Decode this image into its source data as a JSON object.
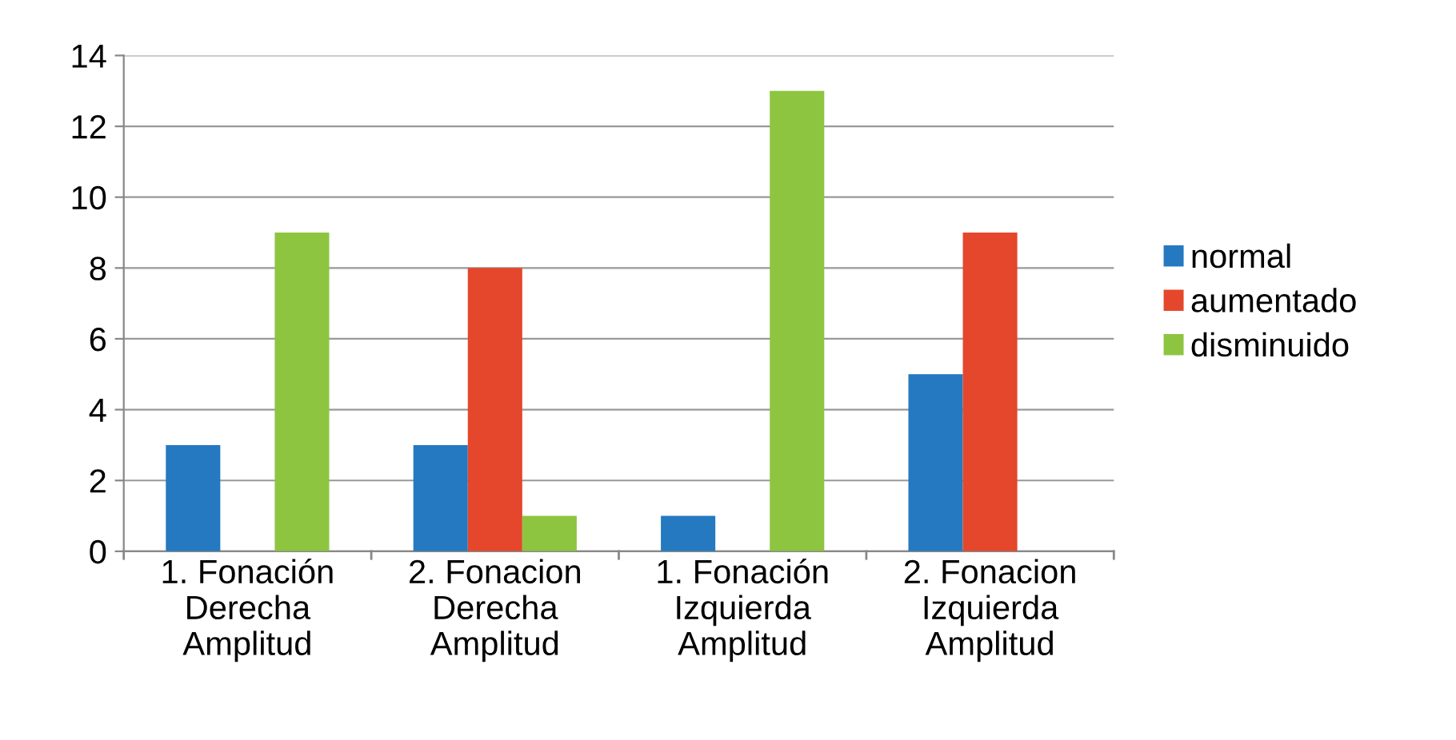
{
  "chart_data": {
    "type": "bar",
    "categories": [
      "1. Fonación\nDerecha\nAmplitud",
      "2. Fonacion\nDerecha\nAmplitud",
      "1. Fonación\nIzquierda\nAmplitud",
      "2. Fonacion\nIzquierda\nAmplitud"
    ],
    "series": [
      {
        "name": "normal",
        "color": "#2479c0",
        "values": [
          3,
          3,
          1,
          5
        ]
      },
      {
        "name": "aumentado",
        "color": "#e4472c",
        "values": [
          0,
          8,
          0,
          9
        ]
      },
      {
        "name": "disminuido",
        "color": "#8dc540",
        "values": [
          9,
          1,
          13,
          0
        ]
      }
    ],
    "ylim": [
      0,
      14
    ],
    "yticks": [
      0,
      2,
      4,
      6,
      8,
      10,
      12,
      14
    ],
    "grid": "y",
    "legend": "right"
  }
}
